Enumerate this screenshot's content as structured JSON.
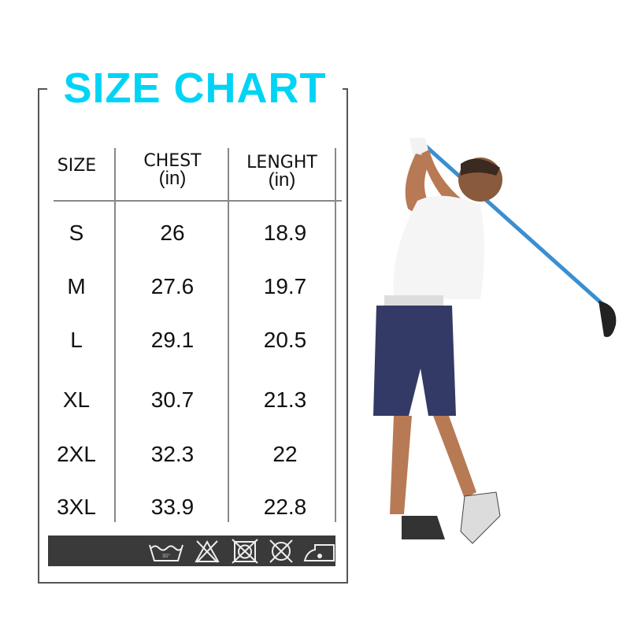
{
  "title": "SIZE CHART",
  "title_color": "#00d4f5",
  "headers": [
    {
      "label": "SIZE",
      "unit": ""
    },
    {
      "label": "CHEST",
      "unit": "(in)"
    },
    {
      "label": "LENGHT",
      "unit": "(in)"
    }
  ],
  "rows": [
    {
      "size": "S",
      "chest": "26",
      "length": "18.9"
    },
    {
      "size": "M",
      "chest": "27.6",
      "length": "19.7"
    },
    {
      "size": "L",
      "chest": "29.1",
      "length": "20.5"
    },
    {
      "size": "XL",
      "chest": "30.7",
      "length": "21.3"
    },
    {
      "size": "2XL",
      "chest": "32.3",
      "length": "22"
    },
    {
      "size": "3XL",
      "chest": "33.9",
      "length": "22.8"
    }
  ],
  "care_icons": [
    "wash-30-icon",
    "do-not-bleach-icon",
    "do-not-tumble-dry-icon",
    "do-not-dry-clean-icon",
    "iron-icon"
  ],
  "wash_temp": "30°",
  "photo": "boy-golfer-swinging-driver"
}
